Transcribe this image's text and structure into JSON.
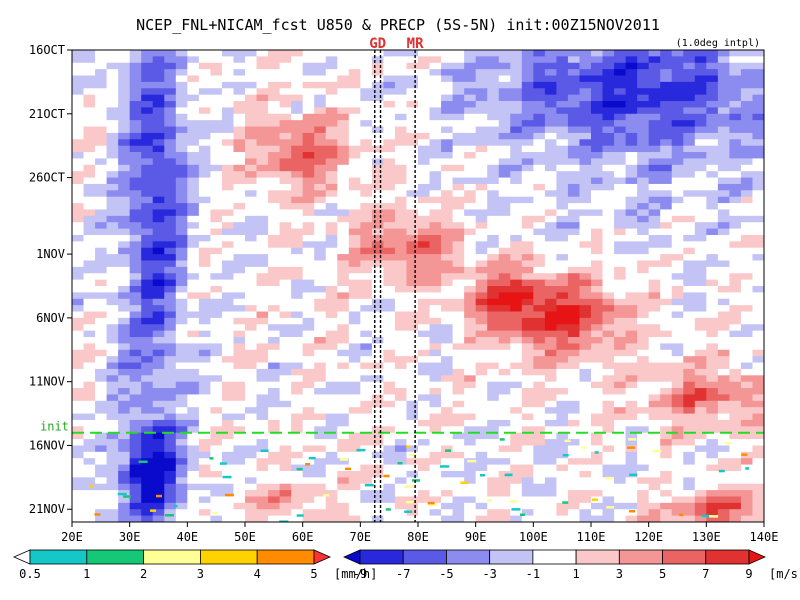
{
  "chart_data": {
    "type": "heatmap",
    "title": "NCEP_FNL+NICAM_fcst U850 & PRECP (5S-5N) init:00Z15NOV2011",
    "subtitle": "(1.0deg intpl)",
    "x_ticks": [
      "20E",
      "30E",
      "40E",
      "50E",
      "60E",
      "70E",
      "80E",
      "90E",
      "100E",
      "110E",
      "120E",
      "130E",
      "140E"
    ],
    "x_tick_values": [
      20,
      30,
      40,
      50,
      60,
      70,
      80,
      90,
      100,
      110,
      120,
      130,
      140
    ],
    "xlim": [
      20,
      140
    ],
    "y_ticks": [
      "16OCT",
      "21OCT",
      "26OCT",
      "1NOV",
      "6NOV",
      "11NOV",
      "16NOV",
      "21NOV"
    ],
    "y_tick_values": [
      0,
      5,
      10,
      16,
      21,
      26,
      31,
      36
    ],
    "ylim": [
      0,
      37
    ],
    "init_label": "init",
    "init_day": 30,
    "markers": [
      {
        "label": "GD",
        "lons": [
          72.5,
          73.5
        ]
      },
      {
        "label": "MR",
        "lons": [
          79.5
        ]
      }
    ],
    "wind_colorbar": {
      "unit": "[m/s]",
      "labels": [
        "-9",
        "-7",
        "-5",
        "-3",
        "-1",
        "1",
        "3",
        "5",
        "7",
        "9"
      ],
      "colors": [
        "#0a0acd",
        "#2828dc",
        "#5a5ae6",
        "#8c8cf0",
        "#c3c3f5",
        "#ffffff",
        "#fac8c8",
        "#f59696",
        "#eb6464",
        "#e13232",
        "#e61414"
      ]
    },
    "precip_colorbar": {
      "unit": "[mm/h]",
      "labels": [
        "0.5",
        "1",
        "2",
        "3",
        "4",
        "5"
      ],
      "colors": [
        "#ffffff",
        "#14c8c8",
        "#14c878",
        "#ffff96",
        "#ffd200",
        "#ff8c00",
        "#ff3232"
      ]
    },
    "wind_features": [
      {
        "lon": 60,
        "day": 8,
        "rx": 9,
        "ry": 3,
        "u": 6
      },
      {
        "lon": 78,
        "day": 15.5,
        "rx": 9,
        "ry": 2.5,
        "u": 6
      },
      {
        "lon": 95,
        "day": 19.5,
        "rx": 7,
        "ry": 2.5,
        "u": 7
      },
      {
        "lon": 106,
        "day": 21,
        "rx": 10,
        "ry": 3,
        "u": 8
      },
      {
        "lon": 130,
        "day": 27,
        "rx": 12,
        "ry": 2.5,
        "u": 5
      },
      {
        "lon": 57,
        "day": 35.5,
        "rx": 7,
        "ry": 1.5,
        "u": 4
      },
      {
        "lon": 132,
        "day": 36,
        "rx": 9,
        "ry": 1.3,
        "u": 7
      },
      {
        "lon": 34,
        "day": 33,
        "rx": 5,
        "ry": 3,
        "u": -9
      },
      {
        "lon": 35,
        "day": 12,
        "rx": 5,
        "ry": 12,
        "u": -5
      },
      {
        "lon": 115,
        "day": 3,
        "rx": 25,
        "ry": 4,
        "u": -5
      }
    ]
  }
}
